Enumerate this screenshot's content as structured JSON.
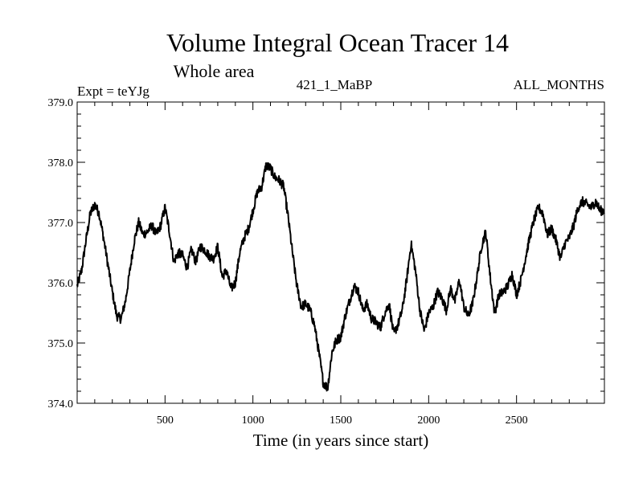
{
  "chart_data": {
    "type": "line",
    "title": "Volume Integral Ocean Tracer 14",
    "subtitle": "Whole area",
    "header_left": "Expt = teYJg",
    "header_center": "421_1_MaBP",
    "header_right": "ALL_MONTHS",
    "xlabel": "Time (in years since start)",
    "ylabel": "",
    "xlim": [
      0,
      3000
    ],
    "ylim": [
      374.0,
      379.0
    ],
    "x_ticks": [
      500,
      1000,
      1500,
      2000,
      2500
    ],
    "x_tick_labels": [
      "500",
      "1000",
      "1500",
      "2000",
      "2500"
    ],
    "y_ticks": [
      374.0,
      375.0,
      376.0,
      377.0,
      378.0,
      379.0
    ],
    "y_tick_labels": [
      "374.0",
      "375.0",
      "376.0",
      "377.0",
      "378.0",
      "379.0"
    ],
    "grid": false,
    "series": [
      {
        "name": "teYJg",
        "color": "#000000",
        "x": [
          0,
          25,
          50,
          75,
          100,
          125,
          150,
          175,
          200,
          225,
          250,
          275,
          300,
          325,
          350,
          375,
          400,
          425,
          450,
          475,
          500,
          525,
          550,
          575,
          600,
          625,
          650,
          675,
          700,
          725,
          750,
          775,
          800,
          825,
          850,
          875,
          900,
          925,
          950,
          975,
          1000,
          1025,
          1050,
          1075,
          1100,
          1125,
          1150,
          1175,
          1200,
          1225,
          1250,
          1275,
          1300,
          1325,
          1350,
          1375,
          1400,
          1425,
          1450,
          1475,
          1500,
          1525,
          1550,
          1575,
          1600,
          1625,
          1650,
          1675,
          1700,
          1725,
          1750,
          1775,
          1800,
          1825,
          1850,
          1875,
          1900,
          1925,
          1950,
          1975,
          2000,
          2025,
          2050,
          2075,
          2100,
          2125,
          2150,
          2175,
          2200,
          2225,
          2250,
          2275,
          2300,
          2325,
          2350,
          2375,
          2400,
          2425,
          2450,
          2475,
          2500,
          2525,
          2550,
          2575,
          2600,
          2625,
          2650,
          2675,
          2700,
          2725,
          2750,
          2775,
          2800,
          2825,
          2850,
          2875,
          2900,
          2925,
          2950,
          2975,
          3000
        ],
        "values": [
          375.95,
          376.2,
          376.7,
          377.15,
          377.3,
          377.15,
          376.75,
          376.3,
          375.85,
          375.45,
          375.4,
          375.7,
          376.2,
          376.7,
          377.0,
          376.8,
          376.85,
          376.95,
          376.8,
          376.95,
          377.25,
          376.85,
          376.35,
          376.5,
          376.45,
          376.25,
          376.55,
          376.35,
          376.6,
          376.55,
          376.45,
          376.4,
          376.6,
          376.1,
          376.2,
          375.9,
          376.0,
          376.5,
          376.75,
          376.9,
          377.2,
          377.5,
          377.6,
          377.95,
          377.9,
          377.75,
          377.7,
          377.6,
          377.1,
          376.5,
          375.95,
          375.6,
          375.65,
          375.55,
          375.3,
          374.85,
          374.35,
          374.25,
          374.85,
          375.05,
          375.1,
          375.45,
          375.7,
          375.95,
          375.85,
          375.55,
          375.65,
          375.4,
          375.35,
          375.25,
          375.5,
          375.65,
          375.15,
          375.3,
          375.55,
          376.05,
          376.65,
          376.2,
          375.55,
          375.2,
          375.5,
          375.6,
          375.85,
          375.75,
          375.55,
          375.9,
          375.7,
          376.05,
          375.6,
          375.45,
          375.65,
          376.1,
          376.6,
          376.85,
          376.1,
          375.5,
          375.8,
          375.85,
          375.95,
          376.15,
          375.8,
          376.05,
          376.4,
          376.75,
          377.05,
          377.25,
          377.15,
          376.8,
          376.9,
          376.7,
          376.4,
          376.65,
          376.75,
          376.95,
          377.25,
          377.35,
          377.3,
          377.25,
          377.35,
          377.2,
          377.2
        ]
      }
    ]
  }
}
